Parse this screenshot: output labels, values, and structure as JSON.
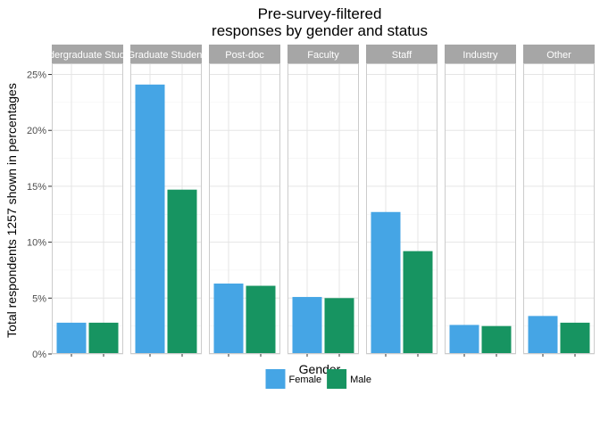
{
  "chart_data": {
    "type": "bar",
    "title_lines": [
      "Pre-survey-filtered",
      "responses by gender and status"
    ],
    "xlabel": "Gender",
    "ylabel": "Total respondents 1257 shown in percentages",
    "ylim": [
      0,
      26
    ],
    "yticks": [
      0,
      5,
      10,
      15,
      20,
      25
    ],
    "ytick_labels": [
      "0%",
      "5%",
      "10%",
      "15%",
      "20%",
      "25%"
    ],
    "grid": true,
    "legend_position": "bottom",
    "facets": [
      "Undergraduate Student",
      "Graduate Student",
      "Post-doc",
      "Faculty",
      "Staff",
      "Industry",
      "Other"
    ],
    "series": [
      {
        "name": "Female",
        "color": "#45a5e5",
        "values": [
          2.8,
          24.1,
          6.3,
          5.1,
          12.7,
          2.6,
          3.4
        ]
      },
      {
        "name": "Male",
        "color": "#179461",
        "values": [
          2.8,
          14.7,
          6.1,
          5.0,
          9.2,
          2.5,
          2.8
        ]
      }
    ]
  }
}
